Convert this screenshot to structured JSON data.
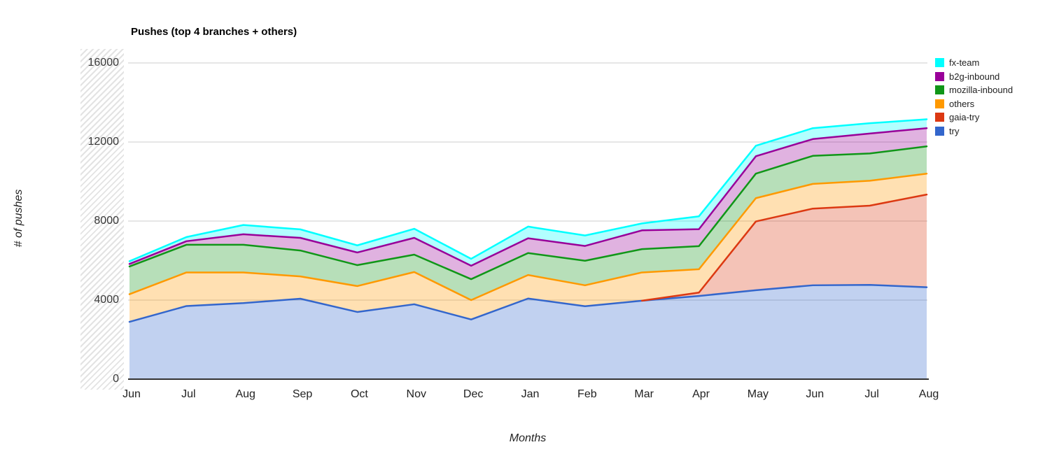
{
  "title": "Pushes (top 4 branches + others)",
  "y_axis": {
    "title": "# of pushes",
    "ticks": [
      0,
      4000,
      8000,
      12000,
      16000
    ]
  },
  "x_axis": {
    "title": "Months"
  },
  "legend": {
    "items": [
      {
        "label": "fx-team",
        "color": "#00FFFF"
      },
      {
        "label": "b2g-inbound",
        "color": "#990099"
      },
      {
        "label": "mozilla-inbound",
        "color": "#109618"
      },
      {
        "label": "others",
        "color": "#FF9900"
      },
      {
        "label": "gaia-try",
        "color": "#DC3912"
      },
      {
        "label": "try",
        "color": "#3366CC"
      }
    ]
  },
  "chart_data": {
    "type": "area",
    "stacked": true,
    "title": "Pushes (top 4 branches + others)",
    "xlabel": "Months",
    "ylabel": "# of pushes",
    "ylim": [
      0,
      16000
    ],
    "grid": true,
    "legend_position": "right",
    "area_opacity": 0.3,
    "x": [
      "Jun",
      "Jul",
      "Aug",
      "Sep",
      "Oct",
      "Nov",
      "Dec",
      "Jan",
      "Feb",
      "Mar",
      "Apr",
      "May",
      "Jun",
      "Jul",
      "Aug"
    ],
    "series": [
      {
        "name": "try",
        "color": "#3366CC",
        "values": [
          2900,
          3700,
          3850,
          4070,
          3400,
          3790,
          3020,
          4080,
          3690,
          3970,
          4210,
          4500,
          4750,
          4770,
          4650
        ]
      },
      {
        "name": "gaia-try",
        "color": "#DC3912",
        "values": [
          null,
          null,
          null,
          null,
          null,
          null,
          null,
          null,
          null,
          0,
          170,
          3480,
          3880,
          4010,
          4690
        ]
      },
      {
        "name": "others",
        "color": "#FF9900",
        "values": [
          1400,
          1700,
          1550,
          1130,
          1310,
          1630,
          980,
          1190,
          1060,
          1430,
          1180,
          1180,
          1250,
          1260,
          1060
        ]
      },
      {
        "name": "mozilla-inbound",
        "color": "#109618",
        "values": [
          1400,
          1400,
          1400,
          1310,
          1060,
          880,
          1060,
          1110,
          1240,
          1180,
          1170,
          1240,
          1420,
          1380,
          1380
        ]
      },
      {
        "name": "b2g-inbound",
        "color": "#990099",
        "values": [
          130,
          180,
          530,
          640,
          640,
          850,
          680,
          750,
          750,
          950,
          860,
          880,
          850,
          1010,
          920
        ]
      },
      {
        "name": "fx-team",
        "color": "#00FFFF",
        "values": [
          140,
          210,
          470,
          430,
          360,
          460,
          350,
          590,
          530,
          350,
          650,
          530,
          550,
          520,
          450
        ]
      }
    ]
  }
}
